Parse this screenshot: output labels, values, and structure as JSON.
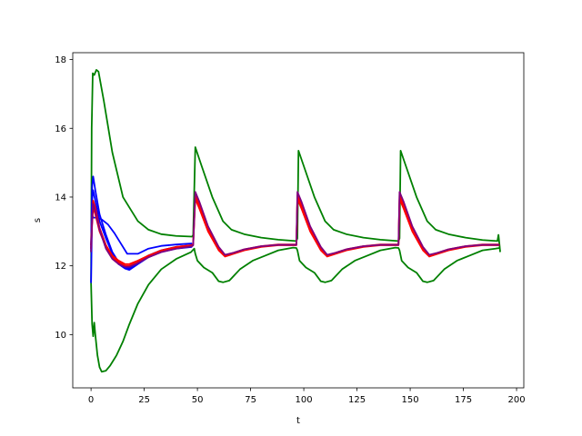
{
  "chart_data": {
    "type": "line",
    "title": "",
    "xlabel": "t",
    "ylabel": "s",
    "xlim": [
      -8.6,
      203.4
    ],
    "ylim": [
      8.45,
      18.2
    ],
    "xticks": [
      0,
      25,
      50,
      75,
      100,
      125,
      150,
      175,
      200
    ],
    "xtick_labels": [
      "0",
      "25",
      "50",
      "75",
      "100",
      "125",
      "150",
      "175",
      "200"
    ],
    "yticks": [
      10,
      12,
      14,
      16,
      18
    ],
    "ytick_labels": [
      "10",
      "12",
      "14",
      "16",
      "18"
    ],
    "grid": false,
    "legend": "none",
    "colors": {
      "blue": "#0000ff",
      "red": "#ff0000",
      "purple": "#7f007f",
      "green": "#008000"
    },
    "series": [
      {
        "color": "green",
        "points": [
          [
            0,
            11.5
          ],
          [
            0.3,
            16.0
          ],
          [
            0.8,
            17.6
          ],
          [
            1.5,
            17.55
          ],
          [
            2.5,
            17.7
          ],
          [
            3.5,
            17.65
          ],
          [
            6,
            16.8
          ],
          [
            10,
            15.3
          ],
          [
            15,
            14.0
          ],
          [
            18,
            13.7
          ],
          [
            22,
            13.3
          ],
          [
            27,
            13.05
          ],
          [
            33,
            12.92
          ],
          [
            40,
            12.87
          ],
          [
            47.5,
            12.85
          ],
          [
            48,
            12.9
          ],
          [
            49,
            15.45
          ],
          [
            52,
            14.9
          ],
          [
            57,
            14.0
          ],
          [
            62,
            13.3
          ],
          [
            66,
            13.05
          ],
          [
            72,
            12.92
          ],
          [
            80,
            12.82
          ],
          [
            88,
            12.76
          ],
          [
            96.5,
            12.72
          ],
          [
            97,
            12.8
          ],
          [
            97.5,
            15.35
          ],
          [
            100,
            14.9
          ],
          [
            105,
            14.0
          ],
          [
            110,
            13.3
          ],
          [
            114,
            13.05
          ],
          [
            120,
            12.92
          ],
          [
            128,
            12.82
          ],
          [
            136,
            12.76
          ],
          [
            144.5,
            12.72
          ],
          [
            145,
            12.8
          ],
          [
            145.5,
            15.35
          ],
          [
            148,
            14.9
          ],
          [
            153,
            14.0
          ],
          [
            158,
            13.3
          ],
          [
            162,
            13.05
          ],
          [
            168,
            12.92
          ],
          [
            176,
            12.82
          ],
          [
            184,
            12.75
          ],
          [
            191,
            12.72
          ],
          [
            191.5,
            12.9
          ],
          [
            192,
            12.6
          ],
          [
            192.3,
            12.4
          ]
        ]
      },
      {
        "color": "green",
        "points": [
          [
            0,
            11.5
          ],
          [
            0.5,
            10.3
          ],
          [
            1,
            9.95
          ],
          [
            1.5,
            10.35
          ],
          [
            2,
            10.0
          ],
          [
            3,
            9.4
          ],
          [
            4,
            9.05
          ],
          [
            5,
            8.92
          ],
          [
            7,
            8.95
          ],
          [
            9,
            9.1
          ],
          [
            12,
            9.4
          ],
          [
            15,
            9.8
          ],
          [
            18,
            10.3
          ],
          [
            22,
            10.9
          ],
          [
            27,
            11.45
          ],
          [
            33,
            11.9
          ],
          [
            40,
            12.2
          ],
          [
            47,
            12.4
          ],
          [
            48.5,
            12.5
          ],
          [
            49,
            12.35
          ],
          [
            50,
            12.15
          ],
          [
            53,
            11.95
          ],
          [
            57,
            11.8
          ],
          [
            60,
            11.55
          ],
          [
            62,
            11.52
          ],
          [
            65,
            11.57
          ],
          [
            70,
            11.9
          ],
          [
            76,
            12.15
          ],
          [
            82,
            12.3
          ],
          [
            88,
            12.45
          ],
          [
            95,
            12.53
          ],
          [
            96.5,
            12.52
          ],
          [
            97,
            12.45
          ],
          [
            98,
            12.15
          ],
          [
            101,
            11.95
          ],
          [
            105,
            11.8
          ],
          [
            108,
            11.55
          ],
          [
            110,
            11.52
          ],
          [
            113,
            11.57
          ],
          [
            118,
            11.9
          ],
          [
            124,
            12.15
          ],
          [
            130,
            12.3
          ],
          [
            136,
            12.45
          ],
          [
            143,
            12.53
          ],
          [
            144.5,
            12.52
          ],
          [
            145,
            12.45
          ],
          [
            146,
            12.15
          ],
          [
            149,
            11.95
          ],
          [
            153,
            11.8
          ],
          [
            156,
            11.55
          ],
          [
            158,
            11.52
          ],
          [
            161,
            11.57
          ],
          [
            166,
            11.9
          ],
          [
            172,
            12.15
          ],
          [
            178,
            12.3
          ],
          [
            184,
            12.45
          ],
          [
            190,
            12.5
          ],
          [
            192,
            12.52
          ]
        ]
      },
      {
        "color": "blue",
        "points": [
          [
            0,
            11.5
          ],
          [
            0.5,
            13.5
          ],
          [
            1,
            13.4
          ],
          [
            3,
            13.4
          ],
          [
            5,
            13.35
          ],
          [
            8,
            13.2
          ],
          [
            11,
            12.95
          ],
          [
            14,
            12.65
          ],
          [
            17,
            12.35
          ],
          [
            22,
            12.35
          ],
          [
            27,
            12.5
          ],
          [
            33,
            12.58
          ],
          [
            40,
            12.62
          ],
          [
            47.5,
            12.65
          ]
        ]
      },
      {
        "color": "blue",
        "points": [
          [
            0,
            12.5
          ],
          [
            0.5,
            14.3
          ],
          [
            1,
            14.6
          ],
          [
            2,
            14.2
          ],
          [
            4,
            13.5
          ],
          [
            7,
            12.9
          ],
          [
            10,
            12.4
          ],
          [
            13,
            12.1
          ],
          [
            16,
            11.95
          ],
          [
            18,
            11.9
          ],
          [
            22,
            12.1
          ],
          [
            27,
            12.3
          ],
          [
            33,
            12.45
          ],
          [
            40,
            12.55
          ],
          [
            47.5,
            12.58
          ]
        ]
      },
      {
        "color": "blue",
        "points": [
          [
            0,
            12.4
          ],
          [
            0.5,
            13.9
          ],
          [
            1,
            14.2
          ],
          [
            2,
            13.9
          ],
          [
            4,
            13.3
          ],
          [
            7,
            12.8
          ],
          [
            10,
            12.35
          ],
          [
            13,
            12.05
          ],
          [
            16,
            11.92
          ],
          [
            18,
            11.88
          ],
          [
            22,
            12.05
          ],
          [
            27,
            12.25
          ],
          [
            33,
            12.4
          ],
          [
            40,
            12.5
          ],
          [
            47.5,
            12.55
          ]
        ]
      },
      {
        "color": "blue",
        "points": [
          [
            0,
            12.6
          ],
          [
            0.5,
            13.7
          ],
          [
            1,
            13.8
          ],
          [
            2,
            13.6
          ],
          [
            4,
            13.1
          ],
          [
            7,
            12.6
          ],
          [
            10,
            12.25
          ],
          [
            13,
            12.05
          ],
          [
            16,
            11.95
          ],
          [
            18,
            11.95
          ],
          [
            22,
            12.1
          ],
          [
            27,
            12.3
          ],
          [
            33,
            12.45
          ],
          [
            40,
            12.55
          ],
          [
            47.5,
            12.6
          ]
        ]
      },
      {
        "color": "red",
        "points": [
          [
            0,
            12.6
          ],
          [
            0.5,
            13.3
          ],
          [
            1,
            13.9
          ],
          [
            2,
            13.7
          ],
          [
            4,
            13.1
          ],
          [
            7,
            12.6
          ],
          [
            10,
            12.3
          ],
          [
            13,
            12.15
          ],
          [
            16,
            12.05
          ],
          [
            18,
            12.05
          ],
          [
            22,
            12.15
          ],
          [
            27,
            12.3
          ],
          [
            33,
            12.45
          ],
          [
            40,
            12.55
          ],
          [
            47.5,
            12.6
          ],
          [
            48,
            12.65
          ],
          [
            49,
            14.05
          ],
          [
            51,
            13.75
          ],
          [
            55,
            13.1
          ],
          [
            60,
            12.5
          ],
          [
            63,
            12.3
          ],
          [
            67,
            12.38
          ],
          [
            72,
            12.48
          ],
          [
            80,
            12.57
          ],
          [
            88,
            12.62
          ],
          [
            96.5,
            12.62
          ],
          [
            97,
            14.05
          ],
          [
            99,
            13.75
          ],
          [
            103,
            13.1
          ],
          [
            108,
            12.5
          ],
          [
            111,
            12.3
          ],
          [
            115,
            12.38
          ],
          [
            120,
            12.48
          ],
          [
            128,
            12.57
          ],
          [
            136,
            12.62
          ],
          [
            144.5,
            12.62
          ],
          [
            145,
            14.05
          ],
          [
            147,
            13.75
          ],
          [
            151,
            13.1
          ],
          [
            156,
            12.5
          ],
          [
            159,
            12.3
          ],
          [
            163,
            12.38
          ],
          [
            168,
            12.48
          ],
          [
            176,
            12.57
          ],
          [
            184,
            12.62
          ],
          [
            192,
            12.62
          ]
        ]
      },
      {
        "color": "red",
        "points": [
          [
            0,
            12.5
          ],
          [
            0.5,
            13.2
          ],
          [
            1,
            13.7
          ],
          [
            2,
            13.5
          ],
          [
            4,
            13.0
          ],
          [
            7,
            12.55
          ],
          [
            10,
            12.25
          ],
          [
            13,
            12.1
          ],
          [
            16,
            12.0
          ],
          [
            18,
            12.0
          ],
          [
            22,
            12.1
          ],
          [
            27,
            12.25
          ],
          [
            33,
            12.42
          ],
          [
            40,
            12.52
          ],
          [
            47.5,
            12.58
          ],
          [
            48,
            12.6
          ],
          [
            49,
            13.95
          ],
          [
            51,
            13.65
          ],
          [
            55,
            13.0
          ],
          [
            60,
            12.45
          ],
          [
            63,
            12.27
          ],
          [
            67,
            12.35
          ],
          [
            72,
            12.45
          ],
          [
            80,
            12.55
          ],
          [
            88,
            12.6
          ],
          [
            96.5,
            12.6
          ],
          [
            97,
            13.95
          ],
          [
            99,
            13.65
          ],
          [
            103,
            13.0
          ],
          [
            108,
            12.45
          ],
          [
            111,
            12.27
          ],
          [
            115,
            12.35
          ],
          [
            120,
            12.45
          ],
          [
            128,
            12.55
          ],
          [
            136,
            12.6
          ],
          [
            144.5,
            12.6
          ],
          [
            145,
            13.95
          ],
          [
            147,
            13.65
          ],
          [
            151,
            13.0
          ],
          [
            156,
            12.45
          ],
          [
            159,
            12.27
          ],
          [
            163,
            12.35
          ],
          [
            168,
            12.45
          ],
          [
            176,
            12.55
          ],
          [
            184,
            12.6
          ],
          [
            192,
            12.6
          ]
        ]
      },
      {
        "color": "purple",
        "points": [
          [
            0,
            12.4
          ],
          [
            0.5,
            13.3
          ],
          [
            1,
            13.8
          ],
          [
            2,
            13.6
          ],
          [
            4,
            13.05
          ],
          [
            7,
            12.5
          ],
          [
            10,
            12.2
          ],
          [
            13,
            12.05
          ],
          [
            16,
            11.97
          ],
          [
            18,
            11.97
          ],
          [
            22,
            12.08
          ],
          [
            27,
            12.25
          ],
          [
            33,
            12.4
          ],
          [
            40,
            12.5
          ],
          [
            47.5,
            12.57
          ],
          [
            48,
            12.6
          ],
          [
            49,
            14.15
          ],
          [
            51,
            13.85
          ],
          [
            55,
            13.15
          ],
          [
            60,
            12.55
          ],
          [
            63,
            12.32
          ],
          [
            67,
            12.38
          ],
          [
            72,
            12.48
          ],
          [
            80,
            12.57
          ],
          [
            88,
            12.61
          ],
          [
            96.5,
            12.61
          ],
          [
            97,
            14.15
          ],
          [
            99,
            13.85
          ],
          [
            103,
            13.15
          ],
          [
            108,
            12.55
          ],
          [
            111,
            12.32
          ],
          [
            115,
            12.38
          ],
          [
            120,
            12.48
          ],
          [
            128,
            12.57
          ],
          [
            136,
            12.61
          ],
          [
            144.5,
            12.61
          ],
          [
            145,
            14.15
          ],
          [
            147,
            13.85
          ],
          [
            151,
            13.15
          ],
          [
            156,
            12.55
          ],
          [
            159,
            12.32
          ],
          [
            163,
            12.38
          ],
          [
            168,
            12.48
          ],
          [
            176,
            12.57
          ],
          [
            184,
            12.61
          ],
          [
            192,
            12.61
          ]
        ]
      }
    ]
  }
}
